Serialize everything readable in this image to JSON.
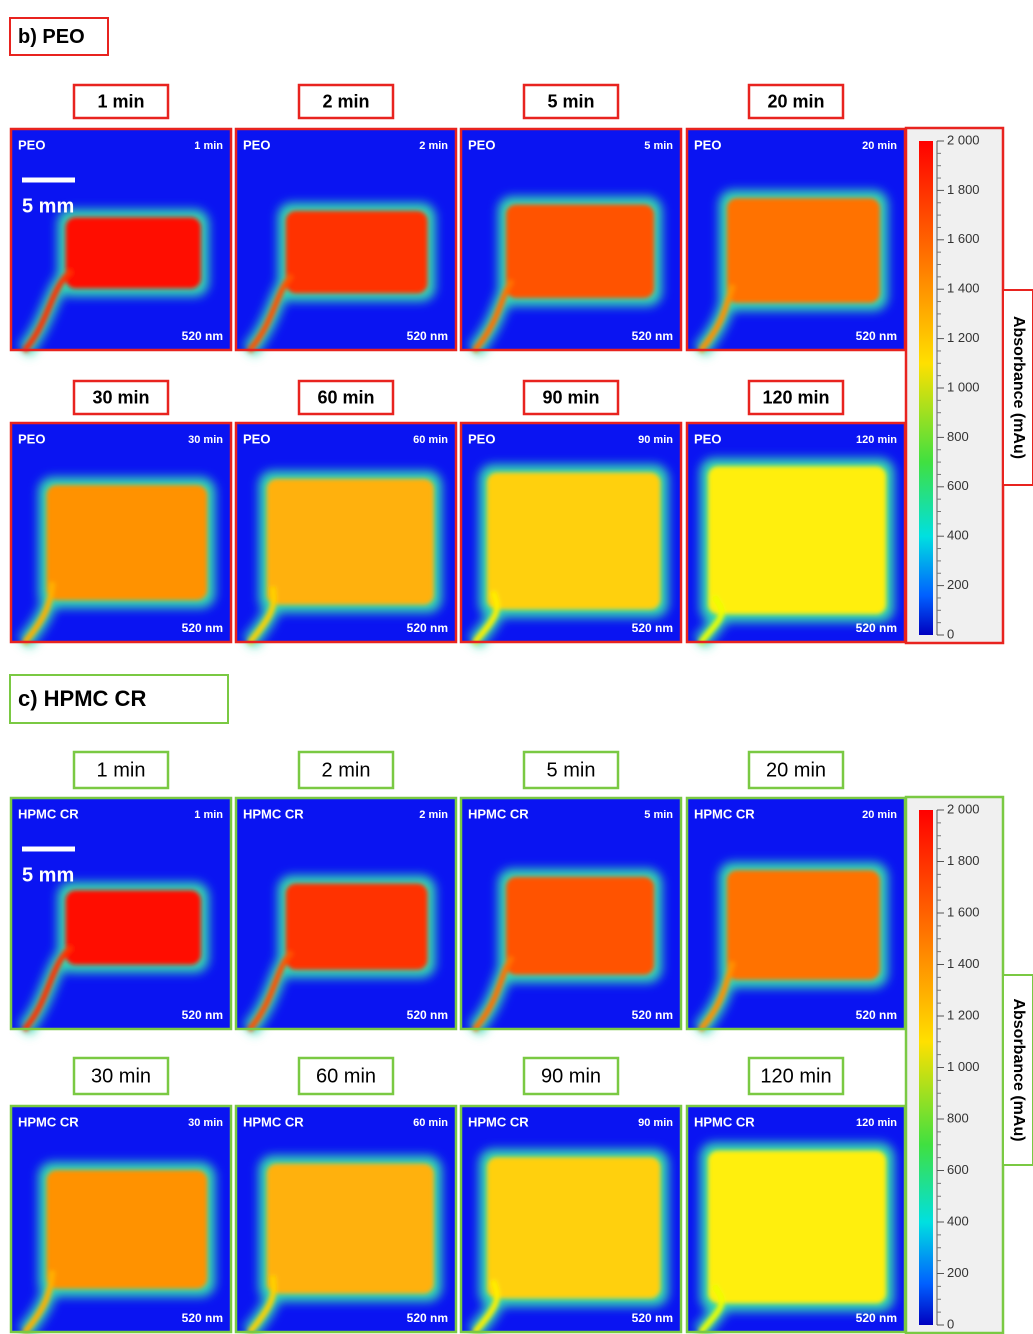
{
  "sections": [
    {
      "heading": "b) PEO",
      "sample": "PEO",
      "wavelength": "520 nm",
      "scale_bar": "5 mm",
      "times": [
        "1 min",
        "2 min",
        "5 min",
        "20 min",
        "30 min",
        "60 min",
        "90 min",
        "120 min"
      ],
      "colorbar": {
        "title": "Absorbance (mAu)",
        "ticks": [
          0,
          200,
          400,
          600,
          800,
          {
            "value": 1000,
            "label": "1 000"
          },
          {
            "value": 1200,
            "label": "1 200"
          },
          {
            "value": 1400,
            "label": "1 400"
          },
          {
            "value": 1600,
            "label": "1 600"
          },
          {
            "value": 1800,
            "label": "1 800"
          },
          {
            "value": 2000,
            "label": "2 000"
          }
        ]
      }
    },
    {
      "heading": "c) HPMC CR",
      "sample": "HPMC CR",
      "wavelength": "520 nm",
      "scale_bar": "5 mm",
      "times": [
        "1 min",
        "2 min",
        "5 min",
        "20 min",
        "30 min",
        "60 min",
        "90 min",
        "120 min"
      ],
      "colorbar": {
        "title": "Absorbance (mAu)",
        "ticks": [
          0,
          200,
          400,
          600,
          800,
          {
            "value": 1000,
            "label": "1 000"
          },
          {
            "value": 1200,
            "label": "1 200"
          },
          {
            "value": 1400,
            "label": "1 400"
          },
          {
            "value": 1600,
            "label": "1 600"
          },
          {
            "value": 1800,
            "label": "1 800"
          },
          {
            "value": 2000,
            "label": "2 000"
          }
        ]
      }
    }
  ]
}
